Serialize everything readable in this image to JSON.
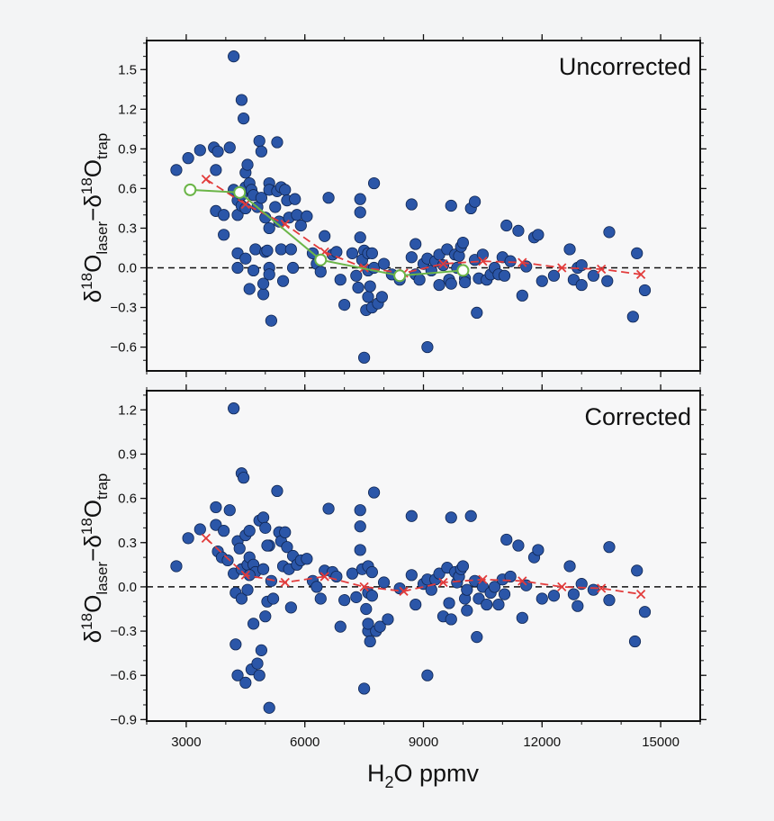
{
  "figure": {
    "xlabel_main": "H",
    "xlabel_sub": "2",
    "xlabel_rest": "O ppmv",
    "ylabel": {
      "delta": "δ",
      "sup1": "18",
      "o1": "O",
      "sub1": "laser",
      "minus": "−",
      "sup2": "18",
      "o2": "O",
      "sub2": "trap"
    },
    "colors": {
      "dots": "#2b56a8",
      "dot_edge": "#0f2550",
      "red_curve": "#e23b3b",
      "green_curve": "#6bb548",
      "frame": "#111111",
      "plot_bg": "#f7f7f8"
    }
  },
  "chart_data": [
    {
      "type": "scatter",
      "title": "Uncorrected",
      "xlabel": "H2O ppmv",
      "ylabel": "δ18Olaser−δ18Otrap",
      "xlim": [
        2000,
        16000
      ],
      "ylim": [
        -0.78,
        1.72
      ],
      "xticks": [
        3000,
        6000,
        9000,
        12000,
        15000
      ],
      "xtick_labels": [
        "3000",
        "6000",
        "9000",
        "12000",
        "15000"
      ],
      "yticks": [
        -0.6,
        -0.3,
        0.0,
        0.3,
        0.6,
        0.9,
        1.2,
        1.5
      ],
      "ytick_labels": [
        "−0.6",
        "−0.3",
        "0.0",
        "0.3",
        "0.6",
        "0.9",
        "1.2",
        "1.5"
      ],
      "zero_line": 0,
      "points": [
        [
          2750,
          0.74
        ],
        [
          3050,
          0.83
        ],
        [
          3350,
          0.89
        ],
        [
          3700,
          0.91
        ],
        [
          3750,
          0.74
        ],
        [
          3800,
          0.88
        ],
        [
          3750,
          0.43
        ],
        [
          3950,
          0.4
        ],
        [
          3950,
          0.25
        ],
        [
          4100,
          0.91
        ],
        [
          4200,
          1.6
        ],
        [
          4200,
          0.59
        ],
        [
          4300,
          0.51
        ],
        [
          4300,
          0.4
        ],
        [
          4300,
          0.11
        ],
        [
          4300,
          0.0
        ],
        [
          4400,
          1.27
        ],
        [
          4400,
          0.55
        ],
        [
          4400,
          0.47
        ],
        [
          4450,
          1.13
        ],
        [
          4500,
          0.72
        ],
        [
          4500,
          0.61
        ],
        [
          4500,
          0.45
        ],
        [
          4500,
          0.07
        ],
        [
          4550,
          0.78
        ],
        [
          4600,
          0.64
        ],
        [
          4600,
          -0.16
        ],
        [
          4650,
          0.59
        ],
        [
          4700,
          0.55
        ],
        [
          4750,
          0.14
        ],
        [
          4700,
          -0.02
        ],
        [
          4800,
          0.46
        ],
        [
          4850,
          0.96
        ],
        [
          4900,
          0.88
        ],
        [
          4900,
          0.53
        ],
        [
          4950,
          -0.2
        ],
        [
          5000,
          0.38
        ],
        [
          5000,
          0.12
        ],
        [
          4950,
          -0.12
        ],
        [
          5100,
          0.64
        ],
        [
          5100,
          0.59
        ],
        [
          5100,
          0.3
        ],
        [
          5050,
          0.13
        ],
        [
          5100,
          0.0
        ],
        [
          5100,
          -0.05
        ],
        [
          5150,
          -0.4
        ],
        [
          5250,
          0.46
        ],
        [
          5300,
          0.95
        ],
        [
          5300,
          0.58
        ],
        [
          5350,
          0.35
        ],
        [
          5400,
          0.61
        ],
        [
          5400,
          0.14
        ],
        [
          5450,
          -0.1
        ],
        [
          5500,
          0.59
        ],
        [
          5550,
          0.51
        ],
        [
          5600,
          0.38
        ],
        [
          5650,
          0.14
        ],
        [
          5700,
          0.0
        ],
        [
          5750,
          0.52
        ],
        [
          5800,
          0.4
        ],
        [
          5900,
          0.32
        ],
        [
          6050,
          0.39
        ],
        [
          6200,
          0.11
        ],
        [
          6300,
          0.03
        ],
        [
          6400,
          -0.03
        ],
        [
          6500,
          0.24
        ],
        [
          6600,
          0.53
        ],
        [
          6700,
          0.1
        ],
        [
          6800,
          0.12
        ],
        [
          6900,
          -0.09
        ],
        [
          7000,
          -0.28
        ],
        [
          7200,
          0.11
        ],
        [
          7300,
          -0.06
        ],
        [
          7400,
          0.52
        ],
        [
          7400,
          0.42
        ],
        [
          7400,
          0.23
        ],
        [
          7350,
          -0.15
        ],
        [
          7500,
          0.13
        ],
        [
          7450,
          0.06
        ],
        [
          7500,
          -0.68
        ],
        [
          7550,
          -0.32
        ],
        [
          7600,
          0.11
        ],
        [
          7600,
          -0.02
        ],
        [
          7600,
          -0.22
        ],
        [
          7650,
          -0.14
        ],
        [
          7700,
          0.11
        ],
        [
          7700,
          -0.3
        ],
        [
          7750,
          0.64
        ],
        [
          7750,
          0.0
        ],
        [
          7850,
          -0.27
        ],
        [
          7950,
          -0.22
        ],
        [
          8000,
          0.03
        ],
        [
          8200,
          -0.05
        ],
        [
          8400,
          -0.09
        ],
        [
          8700,
          0.48
        ],
        [
          8700,
          0.08
        ],
        [
          8800,
          0.18
        ],
        [
          8800,
          -0.05
        ],
        [
          8900,
          -0.09
        ],
        [
          9000,
          0.03
        ],
        [
          9100,
          -0.6
        ],
        [
          9100,
          0.07
        ],
        [
          9200,
          -0.02
        ],
        [
          9300,
          0.05
        ],
        [
          9400,
          0.1
        ],
        [
          9400,
          -0.13
        ],
        [
          9500,
          0.02
        ],
        [
          9600,
          0.14
        ],
        [
          9650,
          -0.09
        ],
        [
          9700,
          0.47
        ],
        [
          9700,
          -0.12
        ],
        [
          9800,
          0.1
        ],
        [
          9850,
          0.0
        ],
        [
          9900,
          0.09
        ],
        [
          9950,
          0.16
        ],
        [
          10000,
          0.19
        ],
        [
          10050,
          -0.08
        ],
        [
          10050,
          -0.11
        ],
        [
          10200,
          0.45
        ],
        [
          10300,
          0.5
        ],
        [
          10300,
          0.06
        ],
        [
          10350,
          -0.34
        ],
        [
          10400,
          -0.08
        ],
        [
          10500,
          0.1
        ],
        [
          10600,
          -0.09
        ],
        [
          10700,
          -0.05
        ],
        [
          10800,
          0.0
        ],
        [
          10900,
          -0.05
        ],
        [
          11000,
          0.08
        ],
        [
          11100,
          0.32
        ],
        [
          11200,
          0.05
        ],
        [
          11400,
          0.28
        ],
        [
          11500,
          -0.21
        ],
        [
          11600,
          0.01
        ],
        [
          11800,
          0.23
        ],
        [
          11900,
          0.25
        ],
        [
          12000,
          -0.1
        ],
        [
          12300,
          -0.06
        ],
        [
          12700,
          0.14
        ],
        [
          12800,
          -0.09
        ],
        [
          12900,
          0.0
        ],
        [
          13000,
          0.02
        ],
        [
          13300,
          -0.06
        ],
        [
          13700,
          0.27
        ],
        [
          14400,
          0.11
        ],
        [
          14300,
          -0.37
        ],
        [
          14600,
          -0.17
        ],
        [
          13650,
          -0.1
        ],
        [
          13000,
          -0.13
        ],
        [
          11050,
          -0.06
        ]
      ],
      "series": [
        {
          "name": "red",
          "style": "dashed-x",
          "x": [
            3500,
            4500,
            5500,
            6500,
            7500,
            8500,
            9500,
            10500,
            11500,
            12500,
            13500,
            14500
          ],
          "y": [
            0.67,
            0.48,
            0.33,
            0.12,
            0.0,
            -0.04,
            0.03,
            0.05,
            0.04,
            0.0,
            -0.01,
            -0.05
          ]
        },
        {
          "name": "green",
          "style": "solid-circle",
          "x": [
            3100,
            4350,
            6400,
            8400,
            10000
          ],
          "y": [
            0.59,
            0.57,
            0.06,
            -0.06,
            -0.02
          ]
        }
      ]
    },
    {
      "type": "scatter",
      "title": "Corrected",
      "xlabel": "H2O ppmv",
      "ylabel": "δ18Olaser−δ18Otrap",
      "xlim": [
        2000,
        16000
      ],
      "ylim": [
        -0.91,
        1.33
      ],
      "xticks": [
        3000,
        6000,
        9000,
        12000,
        15000
      ],
      "xtick_labels": [
        "3000",
        "6000",
        "9000",
        "12000",
        "15000"
      ],
      "yticks": [
        -0.9,
        -0.6,
        -0.3,
        0.0,
        0.3,
        0.6,
        0.9,
        1.2
      ],
      "ytick_labels": [
        "−0.9",
        "−0.6",
        "−0.3",
        "0.0",
        "0.3",
        "0.6",
        "0.9",
        "1.2"
      ],
      "zero_line": 0,
      "points": [
        [
          2750,
          0.14
        ],
        [
          3050,
          0.33
        ],
        [
          3350,
          0.39
        ],
        [
          3750,
          0.54
        ],
        [
          3750,
          0.42
        ],
        [
          3800,
          0.24
        ],
        [
          3900,
          0.2
        ],
        [
          3950,
          0.38
        ],
        [
          4050,
          0.18
        ],
        [
          4100,
          0.52
        ],
        [
          4200,
          1.21
        ],
        [
          4200,
          0.09
        ],
        [
          4250,
          -0.04
        ],
        [
          4250,
          -0.39
        ],
        [
          4300,
          -0.6
        ],
        [
          4300,
          0.31
        ],
        [
          4350,
          0.26
        ],
        [
          4400,
          0.77
        ],
        [
          4400,
          0.12
        ],
        [
          4400,
          -0.08
        ],
        [
          4450,
          0.74
        ],
        [
          4500,
          -0.65
        ],
        [
          4500,
          0.35
        ],
        [
          4550,
          0.15
        ],
        [
          4550,
          -0.02
        ],
        [
          4600,
          0.38
        ],
        [
          4600,
          0.2
        ],
        [
          4650,
          -0.56
        ],
        [
          4700,
          -0.25
        ],
        [
          4700,
          0.15
        ],
        [
          4750,
          0.1
        ],
        [
          4800,
          -0.52
        ],
        [
          4850,
          0.45
        ],
        [
          4850,
          -0.6
        ],
        [
          4900,
          -0.43
        ],
        [
          4950,
          0.47
        ],
        [
          4950,
          0.12
        ],
        [
          5000,
          0.4
        ],
        [
          5000,
          -0.2
        ],
        [
          5050,
          -0.1
        ],
        [
          5100,
          -0.82
        ],
        [
          5100,
          0.28
        ],
        [
          5150,
          0.04
        ],
        [
          5200,
          -0.08
        ],
        [
          5300,
          0.65
        ],
        [
          5350,
          0.37
        ],
        [
          5400,
          0.31
        ],
        [
          5450,
          0.14
        ],
        [
          5500,
          0.37
        ],
        [
          5550,
          0.27
        ],
        [
          5600,
          0.12
        ],
        [
          5650,
          -0.14
        ],
        [
          5700,
          0.21
        ],
        [
          5800,
          0.15
        ],
        [
          5900,
          0.18
        ],
        [
          6050,
          0.19
        ],
        [
          6200,
          0.04
        ],
        [
          6300,
          0.0
        ],
        [
          6400,
          -0.08
        ],
        [
          6600,
          0.53
        ],
        [
          6500,
          0.11
        ],
        [
          6700,
          0.1
        ],
        [
          6800,
          0.07
        ],
        [
          6900,
          -0.27
        ],
        [
          7000,
          -0.09
        ],
        [
          7200,
          0.09
        ],
        [
          7300,
          -0.07
        ],
        [
          7400,
          0.52
        ],
        [
          7400,
          0.41
        ],
        [
          7400,
          0.25
        ],
        [
          7450,
          0.12
        ],
        [
          7500,
          -0.69
        ],
        [
          7550,
          -0.15
        ],
        [
          7600,
          0.14
        ],
        [
          7600,
          -0.04
        ],
        [
          7600,
          -0.3
        ],
        [
          7600,
          -0.25
        ],
        [
          7650,
          -0.37
        ],
        [
          7700,
          0.1
        ],
        [
          7700,
          -0.06
        ],
        [
          7750,
          0.64
        ],
        [
          7800,
          -0.3
        ],
        [
          7900,
          -0.27
        ],
        [
          8000,
          0.03
        ],
        [
          8100,
          -0.22
        ],
        [
          8400,
          -0.01
        ],
        [
          8700,
          0.48
        ],
        [
          8700,
          0.08
        ],
        [
          8800,
          -0.12
        ],
        [
          9000,
          0.02
        ],
        [
          9100,
          -0.6
        ],
        [
          9100,
          0.05
        ],
        [
          9200,
          -0.02
        ],
        [
          9300,
          0.05
        ],
        [
          9400,
          0.09
        ],
        [
          9500,
          -0.2
        ],
        [
          9600,
          0.13
        ],
        [
          9650,
          -0.11
        ],
        [
          9700,
          0.47
        ],
        [
          9700,
          -0.22
        ],
        [
          9800,
          0.1
        ],
        [
          9850,
          0.03
        ],
        [
          9900,
          0.07
        ],
        [
          9950,
          0.12
        ],
        [
          10000,
          0.14
        ],
        [
          10050,
          -0.08
        ],
        [
          10100,
          -0.02
        ],
        [
          10200,
          0.48
        ],
        [
          10300,
          0.04
        ],
        [
          10350,
          -0.34
        ],
        [
          10400,
          -0.08
        ],
        [
          10500,
          0.0
        ],
        [
          10600,
          -0.12
        ],
        [
          10700,
          -0.04
        ],
        [
          10800,
          0.0
        ],
        [
          10900,
          -0.12
        ],
        [
          11000,
          0.05
        ],
        [
          11100,
          0.32
        ],
        [
          11200,
          0.07
        ],
        [
          11400,
          0.28
        ],
        [
          11500,
          -0.21
        ],
        [
          11600,
          0.01
        ],
        [
          11800,
          0.2
        ],
        [
          11900,
          0.25
        ],
        [
          12000,
          -0.08
        ],
        [
          12300,
          -0.06
        ],
        [
          12700,
          0.14
        ],
        [
          12800,
          -0.05
        ],
        [
          12900,
          -0.13
        ],
        [
          13000,
          0.02
        ],
        [
          13300,
          -0.02
        ],
        [
          13700,
          0.27
        ],
        [
          13700,
          -0.09
        ],
        [
          14400,
          0.11
        ],
        [
          14350,
          -0.37
        ],
        [
          14600,
          -0.17
        ],
        [
          10100,
          -0.16
        ],
        [
          11050,
          -0.05
        ],
        [
          4600,
          0.08
        ],
        [
          5050,
          0.28
        ]
      ],
      "series": [
        {
          "name": "red",
          "style": "dashed-x",
          "x": [
            3500,
            4500,
            5500,
            6500,
            7500,
            8500,
            9500,
            10500,
            11500,
            12500,
            13500,
            14500
          ],
          "y": [
            0.33,
            0.08,
            0.03,
            0.07,
            0.0,
            -0.03,
            0.03,
            0.05,
            0.04,
            0.0,
            -0.01,
            -0.05
          ]
        }
      ]
    }
  ]
}
